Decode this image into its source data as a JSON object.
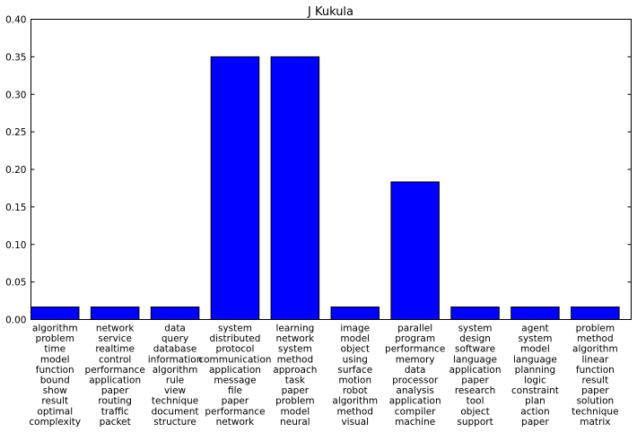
{
  "chart_data": {
    "type": "bar",
    "title": "J Kukula",
    "xlabel": "",
    "ylabel": "",
    "ylim": [
      0,
      0.4
    ],
    "yticks": [
      "0.00",
      "0.05",
      "0.10",
      "0.15",
      "0.20",
      "0.25",
      "0.30",
      "0.35",
      "0.40"
    ],
    "grid": false,
    "bar_color": "#0000ff",
    "categories": [
      [
        "algorithm",
        "problem",
        "time",
        "model",
        "function",
        "bound",
        "show",
        "result",
        "optimal",
        "complexity"
      ],
      [
        "network",
        "service",
        "realtime",
        "control",
        "performance",
        "application",
        "paper",
        "routing",
        "traffic",
        "packet"
      ],
      [
        "data",
        "query",
        "database",
        "information",
        "algorithm",
        "rule",
        "view",
        "technique",
        "document",
        "structure"
      ],
      [
        "system",
        "distributed",
        "protocol",
        "communication",
        "application",
        "message",
        "file",
        "paper",
        "performance",
        "network"
      ],
      [
        "learning",
        "network",
        "system",
        "method",
        "approach",
        "task",
        "paper",
        "problem",
        "model",
        "neural"
      ],
      [
        "image",
        "model",
        "object",
        "using",
        "surface",
        "motion",
        "robot",
        "algorithm",
        "method",
        "visual"
      ],
      [
        "parallel",
        "program",
        "performance",
        "memory",
        "data",
        "processor",
        "analysis",
        "application",
        "compiler",
        "machine"
      ],
      [
        "system",
        "design",
        "software",
        "language",
        "application",
        "paper",
        "research",
        "tool",
        "object",
        "support"
      ],
      [
        "agent",
        "system",
        "model",
        "language",
        "planning",
        "logic",
        "constraint",
        "plan",
        "action",
        "paper"
      ],
      [
        "problem",
        "method",
        "algorithm",
        "linear",
        "function",
        "result",
        "paper",
        "solution",
        "technique",
        "matrix"
      ]
    ],
    "values": [
      0.0167,
      0.0167,
      0.0167,
      0.35,
      0.35,
      0.0167,
      0.1833,
      0.0167,
      0.0167,
      0.0167
    ]
  }
}
